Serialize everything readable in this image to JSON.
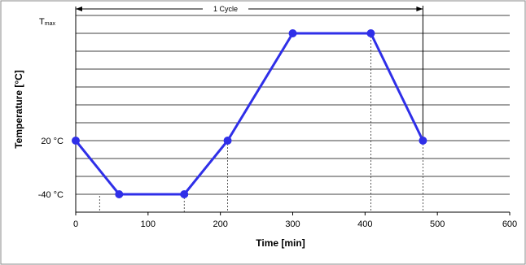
{
  "chart_data": {
    "type": "line",
    "xlabel": "Time [min]",
    "ylabel": "Temperature [°C]",
    "xlim": [
      0,
      600
    ],
    "x_ticks": [
      0,
      100,
      200,
      300,
      400,
      500,
      600
    ],
    "y_tick_labels": {
      "tmax_main": "T",
      "tmax_sub": "max",
      "y20": "20 °C",
      "ym40": "-40 °C"
    },
    "series": [
      {
        "color": "#2f2fe8",
        "x": [
          0,
          60,
          150,
          210,
          300,
          408,
          480
        ],
        "y": [
          20,
          -40,
          -40,
          20,
          140,
          140,
          20
        ]
      }
    ],
    "cycle": {
      "label": "1 Cycle",
      "start": 0,
      "end": 480
    },
    "dashed_drop_x": [
      33,
      150,
      210,
      408,
      480
    ],
    "grid": true
  }
}
